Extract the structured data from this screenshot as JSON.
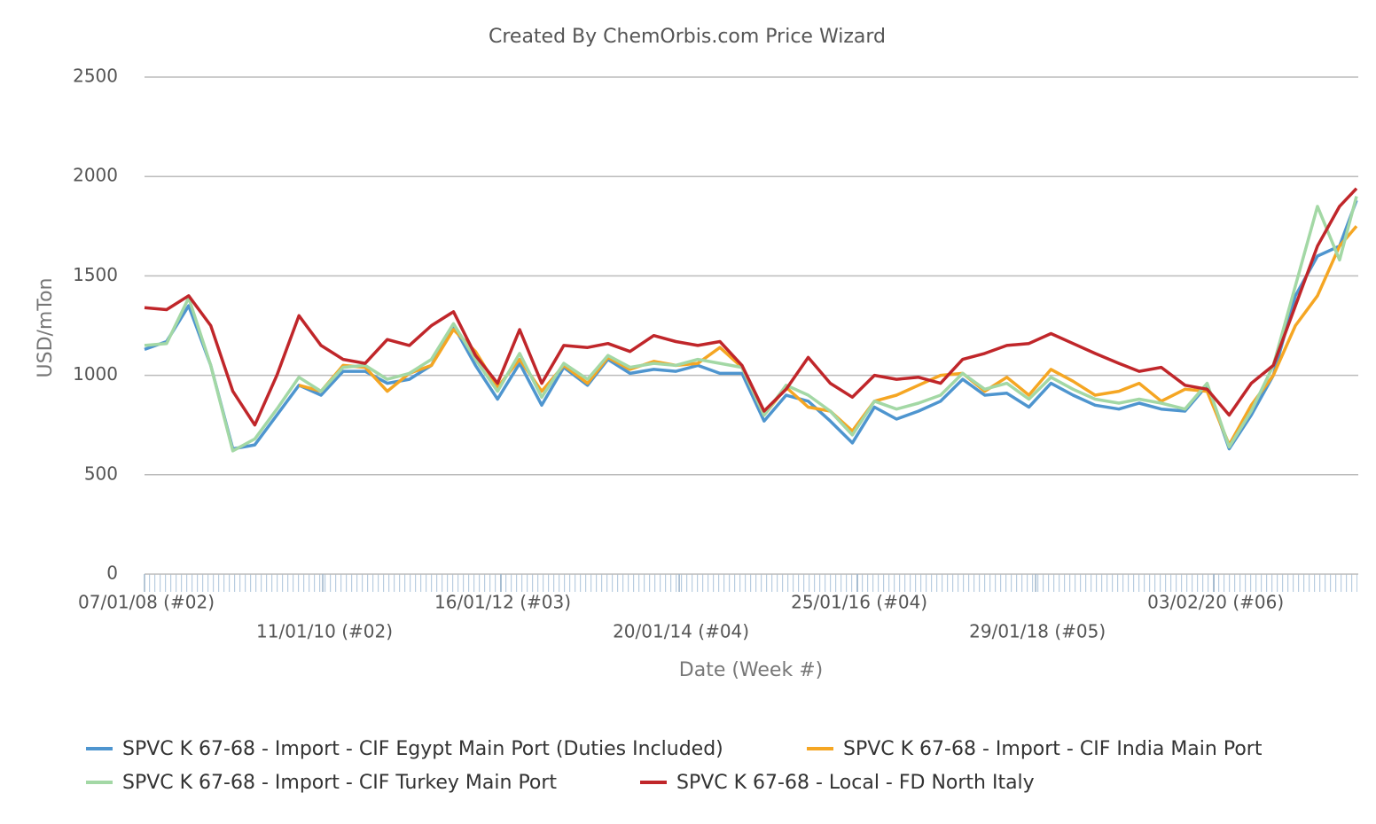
{
  "chart_data": {
    "type": "line",
    "title": "Created By ChemOrbis.com Price Wizard",
    "x_label": "Date (Week #)",
    "y_label": "USD/mTon",
    "x": [
      "2008-01-07",
      "2008-04-07",
      "2008-07-07",
      "2008-10-06",
      "2009-01-05",
      "2009-04-06",
      "2009-07-06",
      "2009-10-05",
      "2010-01-04",
      "2010-04-05",
      "2010-07-05",
      "2010-10-04",
      "2011-01-03",
      "2011-04-04",
      "2011-07-04",
      "2011-10-03",
      "2012-01-02",
      "2012-04-02",
      "2012-07-02",
      "2012-10-01",
      "2013-01-07",
      "2013-04-01",
      "2013-07-01",
      "2013-10-07",
      "2014-01-06",
      "2014-04-07",
      "2014-07-07",
      "2014-10-06",
      "2015-01-05",
      "2015-04-06",
      "2015-07-06",
      "2015-10-05",
      "2016-01-04",
      "2016-04-04",
      "2016-07-04",
      "2016-10-03",
      "2017-01-02",
      "2017-04-03",
      "2017-07-03",
      "2017-10-02",
      "2018-01-01",
      "2018-04-02",
      "2018-07-02",
      "2018-10-01",
      "2019-01-07",
      "2019-04-01",
      "2019-07-01",
      "2019-10-07",
      "2020-01-06",
      "2020-04-06",
      "2020-07-06",
      "2020-10-05",
      "2021-01-04",
      "2021-04-05",
      "2021-07-05",
      "2021-09-13"
    ],
    "series": [
      {
        "name": "SPVC K 67-68 - Import - CIF Egypt Main Port (Duties Included)",
        "color": "#4e95cf",
        "values": [
          1130,
          1170,
          1350,
          1050,
          630,
          650,
          800,
          950,
          900,
          1020,
          1020,
          960,
          980,
          1050,
          1250,
          1050,
          880,
          1060,
          850,
          1040,
          950,
          1080,
          1010,
          1030,
          1020,
          1050,
          1010,
          1010,
          770,
          900,
          870,
          770,
          660,
          840,
          780,
          820,
          870,
          980,
          900,
          910,
          840,
          960,
          900,
          850,
          830,
          860,
          830,
          820,
          950,
          630,
          800,
          1000,
          1400,
          1600,
          1650,
          1880
        ]
      },
      {
        "name": "SPVC K 67-68 - Import - CIF India Main Port",
        "color": "#f5a623",
        "values": [
          null,
          null,
          null,
          null,
          null,
          null,
          null,
          950,
          920,
          1050,
          1040,
          920,
          1010,
          1050,
          1230,
          1120,
          940,
          1080,
          920,
          1050,
          960,
          1090,
          1030,
          1070,
          1050,
          1060,
          1140,
          1040,
          800,
          940,
          840,
          820,
          720,
          870,
          900,
          950,
          1000,
          1010,
          920,
          990,
          900,
          1030,
          970,
          900,
          920,
          960,
          870,
          930,
          920,
          650,
          850,
          1000,
          1250,
          1400,
          1650,
          1750
        ]
      },
      {
        "name": "SPVC K 67-68 - Import - CIF Turkey Main Port",
        "color": "#a3d8a5",
        "values": [
          1150,
          1160,
          1390,
          1050,
          620,
          680,
          830,
          990,
          920,
          1040,
          1050,
          980,
          1010,
          1080,
          1260,
          1080,
          920,
          1110,
          890,
          1060,
          980,
          1100,
          1040,
          1060,
          1050,
          1080,
          1060,
          1040,
          800,
          950,
          900,
          820,
          700,
          870,
          830,
          860,
          900,
          1010,
          930,
          960,
          880,
          990,
          930,
          880,
          860,
          880,
          860,
          830,
          960,
          640,
          820,
          1050,
          1450,
          1850,
          1580,
          1900
        ]
      },
      {
        "name": "SPVC K 67-68 - Local - FD North Italy",
        "color": "#c0262a",
        "values": [
          1340,
          1330,
          1400,
          1250,
          920,
          750,
          1000,
          1300,
          1150,
          1080,
          1060,
          1180,
          1150,
          1250,
          1320,
          1100,
          960,
          1230,
          960,
          1150,
          1140,
          1160,
          1120,
          1200,
          1170,
          1150,
          1170,
          1050,
          820,
          930,
          1090,
          960,
          890,
          1000,
          980,
          990,
          960,
          1080,
          1110,
          1150,
          1160,
          1210,
          1160,
          1110,
          1060,
          1020,
          1040,
          950,
          930,
          800,
          960,
          1050,
          1350,
          1650,
          1850,
          1940
        ]
      }
    ],
    "xlim": [
      "2008-01-07",
      "2021-09-13"
    ],
    "xticks": [
      {
        "value": "2008-01-07",
        "label": "07/01/08 (#02)"
      },
      {
        "value": "2010-01-11",
        "label": "11/01/10 (#02)"
      },
      {
        "value": "2012-01-16",
        "label": "16/01/12 (#03)"
      },
      {
        "value": "2014-01-20",
        "label": "20/01/14 (#04)"
      },
      {
        "value": "2016-01-25",
        "label": "25/01/16 (#04)"
      },
      {
        "value": "2018-01-29",
        "label": "29/01/18 (#05)"
      },
      {
        "value": "2020-02-03",
        "label": "03/02/20 (#06)"
      }
    ],
    "ylim": [
      0,
      2500
    ],
    "yticks": [
      0,
      500,
      1000,
      1500,
      2000,
      2500
    ],
    "grid": true,
    "legend": "bottom"
  }
}
